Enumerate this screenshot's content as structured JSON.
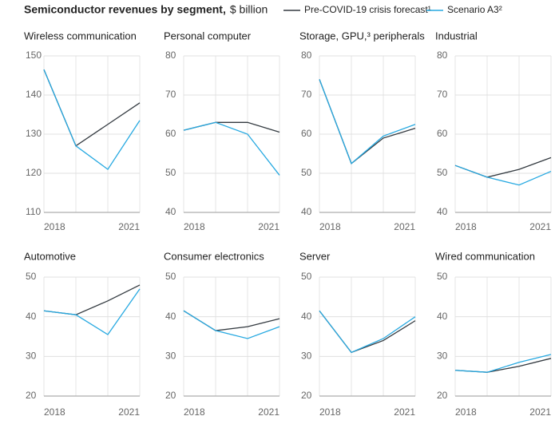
{
  "title": "Semiconductor revenues by segment,",
  "subtitle": "$ billion",
  "legend": [
    {
      "name": "Pre-COVID-19 crisis forecast¹",
      "color": "#333a40"
    },
    {
      "name": "Scenario A3²",
      "color": "#27a9e1"
    }
  ],
  "chart_data": [
    {
      "type": "line",
      "title": "Wireless communication",
      "categories": [
        "2018",
        null,
        null,
        "2021"
      ],
      "ylim": [
        110,
        150
      ],
      "yticks": [
        110,
        120,
        130,
        140,
        150
      ],
      "grid": true,
      "series": [
        {
          "values": [
            146.5,
            127,
            132.5,
            138
          ]
        },
        {
          "values": [
            146.5,
            127,
            121,
            133.5
          ]
        }
      ]
    },
    {
      "type": "line",
      "title": "Personal computer",
      "categories": [
        "2018",
        null,
        null,
        "2021"
      ],
      "ylim": [
        40,
        80
      ],
      "yticks": [
        40,
        50,
        60,
        70,
        80
      ],
      "grid": true,
      "series": [
        {
          "values": [
            61,
            63,
            63,
            60.5
          ]
        },
        {
          "values": [
            61,
            63,
            60,
            49.5
          ]
        }
      ]
    },
    {
      "type": "line",
      "title": "Storage, GPU,³ peripherals",
      "categories": [
        "2018",
        null,
        null,
        "2021"
      ],
      "ylim": [
        40,
        80
      ],
      "yticks": [
        40,
        50,
        60,
        70,
        80
      ],
      "grid": true,
      "series": [
        {
          "values": [
            74,
            52.5,
            59,
            61.5
          ]
        },
        {
          "values": [
            74,
            52.5,
            59.5,
            62.5
          ]
        }
      ]
    },
    {
      "type": "line",
      "title": "Industrial",
      "categories": [
        "2018",
        null,
        null,
        "2021"
      ],
      "ylim": [
        40,
        80
      ],
      "yticks": [
        40,
        50,
        60,
        70,
        80
      ],
      "grid": true,
      "series": [
        {
          "values": [
            52,
            49,
            51,
            54
          ]
        },
        {
          "values": [
            52,
            49,
            47,
            50.5
          ]
        }
      ]
    },
    {
      "type": "line",
      "title": "Automotive",
      "categories": [
        "2018",
        null,
        null,
        "2021"
      ],
      "ylim": [
        20,
        50
      ],
      "yticks": [
        20,
        30,
        40,
        50
      ],
      "grid": true,
      "series": [
        {
          "values": [
            41.5,
            40.5,
            44,
            48
          ]
        },
        {
          "values": [
            41.5,
            40.5,
            35.5,
            47
          ]
        }
      ]
    },
    {
      "type": "line",
      "title": "Consumer electronics",
      "categories": [
        "2018",
        null,
        null,
        "2021"
      ],
      "ylim": [
        20,
        50
      ],
      "yticks": [
        20,
        30,
        40,
        50
      ],
      "grid": true,
      "series": [
        {
          "values": [
            41.5,
            36.5,
            37.5,
            39.5
          ]
        },
        {
          "values": [
            41.5,
            36.5,
            34.5,
            37.5
          ]
        }
      ]
    },
    {
      "type": "line",
      "title": "Server",
      "categories": [
        "2018",
        null,
        null,
        "2021"
      ],
      "ylim": [
        20,
        50
      ],
      "yticks": [
        20,
        30,
        40,
        50
      ],
      "grid": true,
      "series": [
        {
          "values": [
            41.5,
            31,
            34,
            39
          ]
        },
        {
          "values": [
            41.5,
            31,
            34.5,
            40
          ]
        }
      ]
    },
    {
      "type": "line",
      "title": "Wired communication",
      "categories": [
        "2018",
        null,
        null,
        "2021"
      ],
      "ylim": [
        20,
        50
      ],
      "yticks": [
        20,
        30,
        40,
        50
      ],
      "grid": true,
      "series": [
        {
          "values": [
            26.5,
            26,
            27.5,
            29.5
          ]
        },
        {
          "values": [
            26.5,
            26,
            28.5,
            30.5
          ]
        }
      ]
    }
  ]
}
